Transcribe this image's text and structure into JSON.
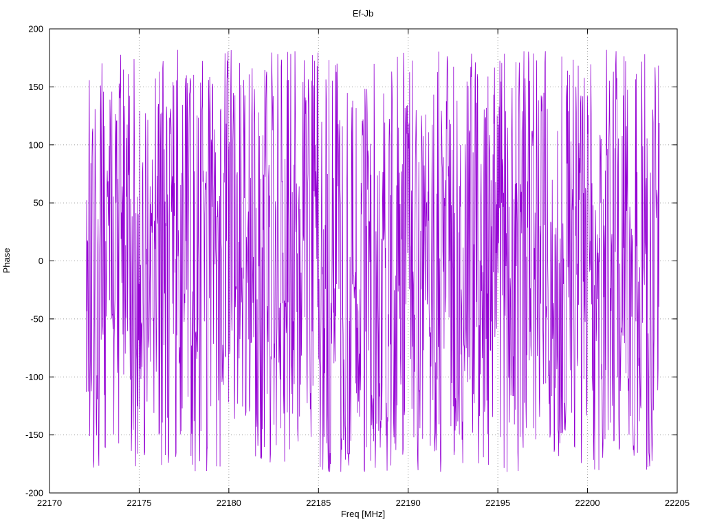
{
  "chart_data": {
    "type": "line",
    "title": "Ef-Jb",
    "xlabel": "Freq [MHz]",
    "ylabel": "Phase",
    "xlim": [
      22170,
      22205
    ],
    "ylim": [
      -200,
      200
    ],
    "x_ticks": [
      22170,
      22175,
      22180,
      22185,
      22190,
      22195,
      22200,
      22205
    ],
    "y_ticks": [
      -200,
      -150,
      -100,
      -50,
      0,
      50,
      100,
      150,
      200
    ],
    "grid": true,
    "grid_style": "dotted",
    "grid_color": "#9a9a9a",
    "legend_position": "none",
    "series": [
      {
        "name": "phase",
        "color": "#9400d3",
        "x_start": 22172.05,
        "x_end": 22204.0,
        "n_points": 1500,
        "y_min": -182,
        "y_max": 182,
        "distribution": "uniform-random-phase-noise",
        "seed": 1337
      }
    ]
  }
}
